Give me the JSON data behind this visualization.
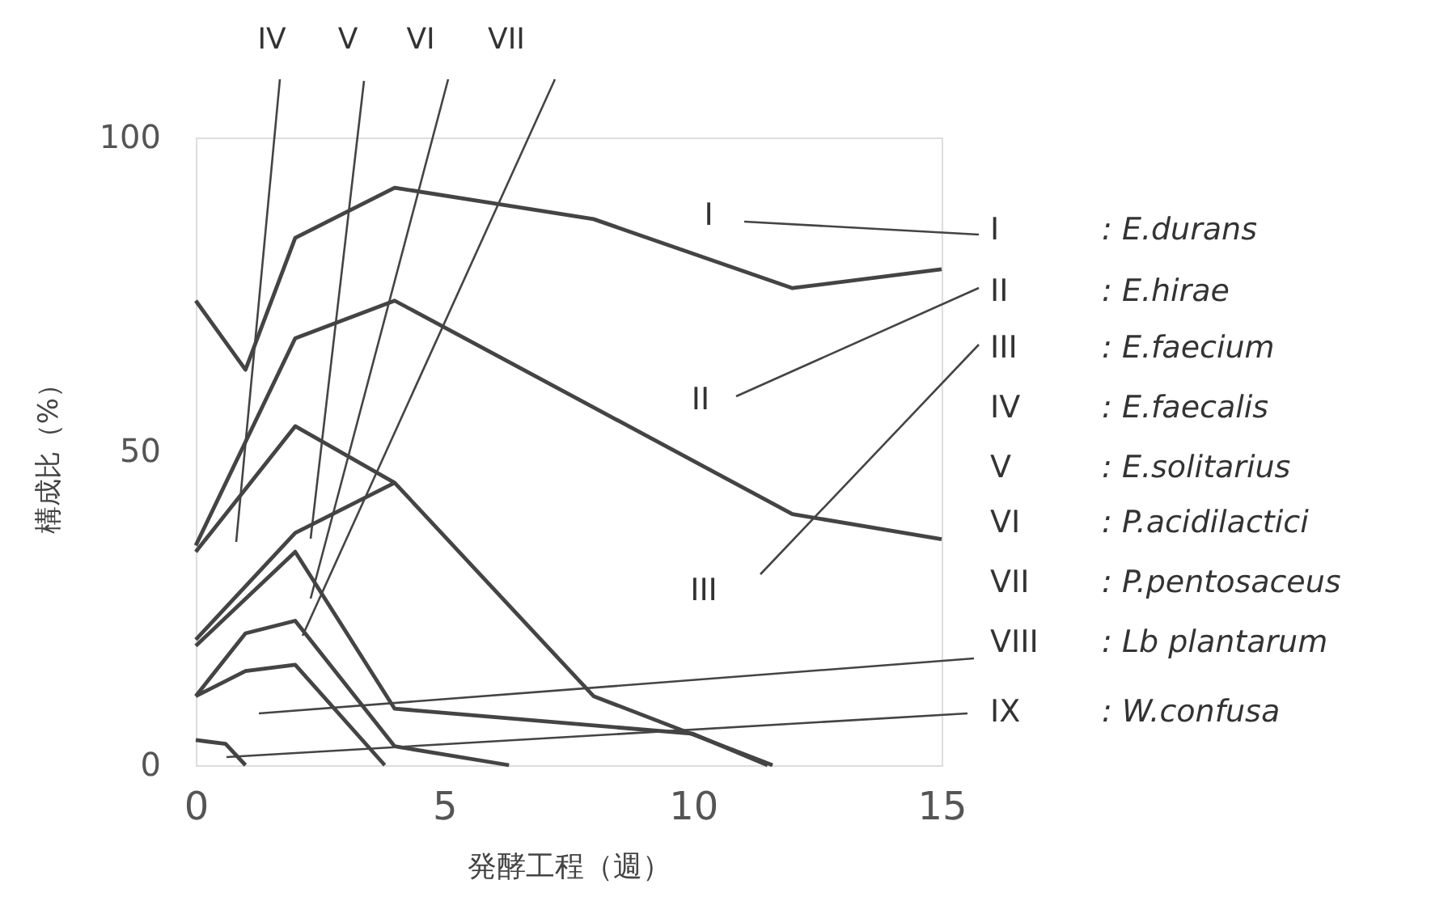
{
  "chart_data": {
    "type": "line",
    "xlabel": "発酵工程（週）",
    "ylabel": "構成比（%）",
    "xlim": [
      0,
      15
    ],
    "xticks": [
      0,
      5,
      10,
      15
    ],
    "ylim": [
      0,
      100
    ],
    "yticks": [
      0,
      50,
      100
    ],
    "grid": false,
    "marker": "none",
    "line_style": "solid",
    "series": [
      {
        "color": "#444444",
        "x": [
          0,
          1,
          2,
          4,
          8,
          12,
          15
        ],
        "values": [
          74,
          63,
          84,
          92,
          87,
          76,
          79
        ]
      },
      {
        "color": "#444444",
        "x": [
          0,
          2,
          4,
          12,
          15
        ],
        "values": [
          35,
          68,
          74,
          40,
          36
        ]
      },
      {
        "color": "#444444",
        "x": [
          0,
          2,
          4,
          8,
          11.6
        ],
        "values": [
          34,
          54,
          45,
          11,
          0
        ]
      },
      {
        "color": "#444444",
        "x": [
          0,
          2,
          4
        ],
        "values": [
          20,
          37,
          45
        ]
      },
      {
        "color": "#444444",
        "x": [
          0,
          2,
          4,
          10,
          11.5
        ],
        "values": [
          19,
          34,
          9,
          5,
          0
        ]
      },
      {
        "color": "#444444",
        "x": [
          0,
          1,
          2,
          4,
          6.3
        ],
        "values": [
          11,
          21,
          23,
          3,
          0
        ]
      },
      {
        "color": "#444444",
        "x": [
          0,
          1,
          2,
          3.8
        ],
        "values": [
          11,
          15,
          16,
          0
        ]
      },
      {
        "color": "#444444",
        "x": [
          0,
          0.6,
          1
        ],
        "values": [
          4,
          3.4,
          0
        ]
      }
    ],
    "annotations": [
      "I",
      "II",
      "III",
      "IV",
      "V",
      "VI",
      "VII",
      "VIII",
      "IX",
      ": E.durans",
      ": E.hirae",
      ": E.faecium",
      ": E.faecalis",
      ": E.solitarius",
      ": P.acidilactici",
      ": P.pentosaceus",
      ": Lb plantarum",
      ": W.confusa",
      "I",
      "II",
      "III",
      "IV",
      "V",
      "VI",
      "VII"
    ]
  }
}
